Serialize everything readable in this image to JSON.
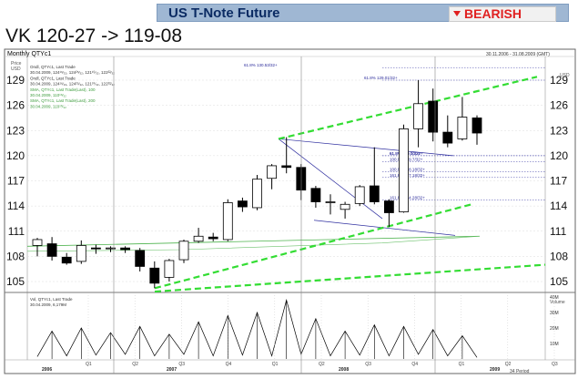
{
  "banner": {
    "title": "US T-Note Future",
    "badge": "BEARISH",
    "badge_icon": "down-arrow-icon"
  },
  "headline": "VK 120-27 -> 119-08",
  "chart_data": {
    "type": "candlestick",
    "title": "Monthly QTYc1",
    "date_range": "30.11.2006 - 31.08.2009 (GMT)",
    "price_axis": {
      "unit_label": "Price",
      "currency": "USD",
      "ylim": [
        104,
        130.5
      ],
      "ticks": [
        105,
        108,
        111,
        114,
        117,
        120,
        123,
        126,
        129
      ]
    },
    "x_axis": {
      "quarter_labels": [
        "Q1",
        "Q2",
        "Q3",
        "Q4",
        "Q1",
        "Q2",
        "Q3",
        "Q4",
        "Q1",
        "Q2",
        "Q3"
      ],
      "year_labels": [
        "2006",
        "2007",
        "2008",
        "2009"
      ],
      "period_label": "34 Period"
    },
    "price_legend": [
      "Ondl, QTYc1, Last Trade",
      "30.04.2009, 124¹⁶⁄₃₂, 124²⁵⁄₃₂, 121¹⁰⁄₃₂, 122²²⁄₃₂",
      "Ondl, QTYc1, Last Trade",
      "30.04.2009, 124¹⁶⁄₃₂, 124²⁵⁄₃₂, 121¹⁰⁄₃₂, 122²²⁄₃₂",
      "SMA, QTYc1, Last Trade(Last), 100",
      "30.04.2009, 110¹⁸⁄₃₂",
      "SMA, QTYc1, Last Trade(Last), 200",
      "30.04.2009, 110¹⁰⁄₃₂"
    ],
    "candles": [
      {
        "o": 109.3,
        "h": 110.2,
        "l": 108.0,
        "c": 110.0
      },
      {
        "o": 109.5,
        "h": 110.3,
        "l": 107.5,
        "c": 108.0
      },
      {
        "o": 107.9,
        "h": 108.4,
        "l": 107.0,
        "c": 107.2
      },
      {
        "o": 107.4,
        "h": 109.9,
        "l": 107.1,
        "c": 109.3
      },
      {
        "o": 109.0,
        "h": 109.4,
        "l": 108.3,
        "c": 108.9
      },
      {
        "o": 108.9,
        "h": 109.2,
        "l": 108.5,
        "c": 109.0
      },
      {
        "o": 109.0,
        "h": 109.2,
        "l": 108.4,
        "c": 108.8
      },
      {
        "o": 108.7,
        "h": 109.0,
        "l": 106.2,
        "c": 106.8
      },
      {
        "o": 106.6,
        "h": 107.4,
        "l": 104.2,
        "c": 104.8
      },
      {
        "o": 105.5,
        "h": 107.7,
        "l": 105.0,
        "c": 107.5
      },
      {
        "o": 107.6,
        "h": 110.0,
        "l": 107.2,
        "c": 109.8
      },
      {
        "o": 109.8,
        "h": 111.4,
        "l": 109.6,
        "c": 110.4
      },
      {
        "o": 110.3,
        "h": 110.8,
        "l": 109.8,
        "c": 110.1
      },
      {
        "o": 110.0,
        "h": 114.8,
        "l": 109.8,
        "c": 114.4
      },
      {
        "o": 114.6,
        "h": 115.0,
        "l": 113.3,
        "c": 113.9
      },
      {
        "o": 113.8,
        "h": 117.7,
        "l": 113.5,
        "c": 117.2
      },
      {
        "o": 117.3,
        "h": 119.0,
        "l": 116.0,
        "c": 118.8
      },
      {
        "o": 118.8,
        "h": 122.2,
        "l": 117.9,
        "c": 118.6
      },
      {
        "o": 118.6,
        "h": 119.0,
        "l": 114.7,
        "c": 115.9
      },
      {
        "o": 116.1,
        "h": 116.4,
        "l": 113.8,
        "c": 114.5
      },
      {
        "o": 114.5,
        "h": 115.4,
        "l": 113.0,
        "c": 114.5
      },
      {
        "o": 113.6,
        "h": 114.5,
        "l": 112.5,
        "c": 114.2
      },
      {
        "o": 114.3,
        "h": 116.5,
        "l": 114.0,
        "c": 116.3
      },
      {
        "o": 116.4,
        "h": 121.0,
        "l": 114.2,
        "c": 114.5
      },
      {
        "o": 114.6,
        "h": 114.8,
        "l": 111.5,
        "c": 113.2
      },
      {
        "o": 113.3,
        "h": 123.7,
        "l": 113.2,
        "c": 123.2
      },
      {
        "o": 123.2,
        "h": 129.0,
        "l": 121.0,
        "c": 126.2
      },
      {
        "o": 126.5,
        "h": 128.0,
        "l": 121.7,
        "c": 122.8
      },
      {
        "o": 122.8,
        "h": 124.8,
        "l": 121.0,
        "c": 121.5
      },
      {
        "o": 122.0,
        "h": 127.0,
        "l": 121.8,
        "c": 124.6
      },
      {
        "o": 124.5,
        "h": 124.8,
        "l": 121.3,
        "c": 122.7
      }
    ],
    "fib_levels": [
      {
        "label": "61.8%  130.53/32+",
        "value": 130.5
      },
      {
        "label": "61.8%  129.01/32+",
        "value": 129.0
      },
      {
        "label": "61.8%  120.0/32+",
        "value": 120.0
      },
      {
        "label": "61.8%  120.00/32+",
        "value": 120.0
      },
      {
        "label": "100.0%  119.7/32+",
        "value": 119.3
      },
      {
        "label": "100.0%  118.18/32+",
        "value": 118.1
      },
      {
        "label": "161.8%  117.18/32+",
        "value": 117.4
      },
      {
        "label": "161.8%  114.28/32+",
        "value": 114.7
      }
    ],
    "volume_legend": [
      "Vol, QTYc1, Last Trade",
      "30.04.2009, 6,179M"
    ],
    "volume_axis": {
      "label": "Volume",
      "unit": "M",
      "ticks": [
        "40M",
        "30M",
        "20M",
        "10M"
      ]
    },
    "volume": [
      1.5,
      18,
      2,
      20,
      2.5,
      17,
      3,
      21,
      2,
      16,
      3,
      24,
      2,
      28,
      2.5,
      30,
      2,
      38,
      3,
      26,
      2,
      18,
      2.5,
      22,
      2,
      21,
      3,
      19,
      2,
      15,
      1
    ]
  }
}
